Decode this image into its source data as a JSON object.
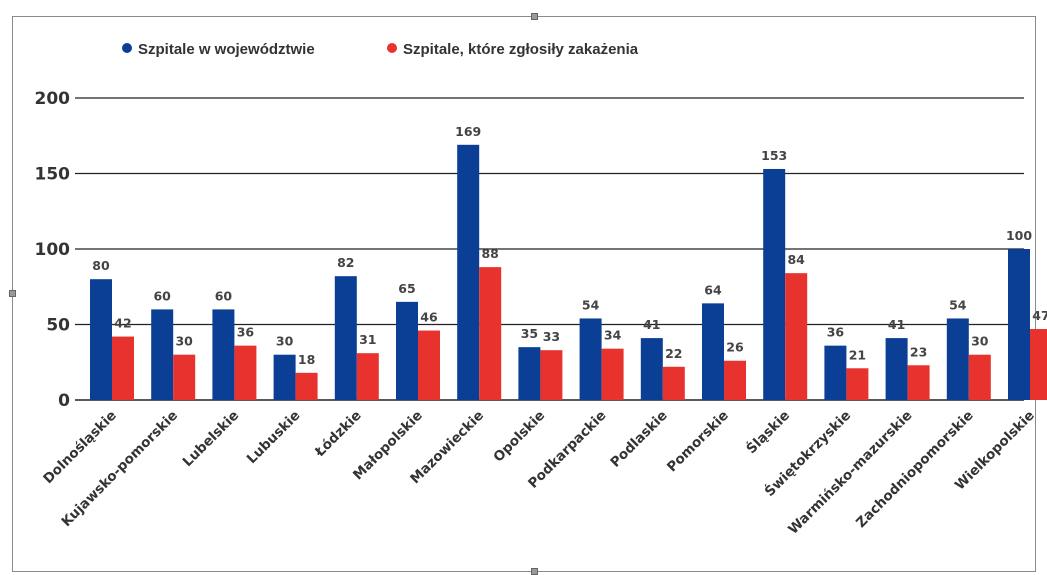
{
  "chart_data": {
    "type": "bar",
    "categories": [
      "Dolnośląskie",
      "Kujawsko-pomorskie",
      "Lubelskie",
      "Lubuskie",
      "Łódzkie",
      "Małopolskie",
      "Mazowieckie",
      "Opolskie",
      "Podkarpackie",
      "Podlaskie",
      "Pomorskie",
      "Śląskie",
      "Świętokrzyskie",
      "Warmińsko-mazurskie",
      "Zachodniopomorskie",
      "Wielkopolskie"
    ],
    "series": [
      {
        "name": "Szpitale w województwie",
        "color": "#0b3f96",
        "values": [
          80,
          60,
          60,
          30,
          82,
          65,
          169,
          35,
          54,
          41,
          64,
          153,
          36,
          41,
          54,
          100
        ]
      },
      {
        "name": "Szpitale, które zgłosiły zakażenia",
        "color": "#e8322e",
        "values": [
          42,
          30,
          36,
          18,
          31,
          46,
          88,
          33,
          34,
          22,
          26,
          84,
          21,
          23,
          30,
          47
        ]
      }
    ],
    "ylim": [
      0,
      200
    ],
    "yticks": [
      "0",
      "50",
      "100",
      "150",
      "200"
    ],
    "grid": true,
    "legend": "top-left"
  }
}
